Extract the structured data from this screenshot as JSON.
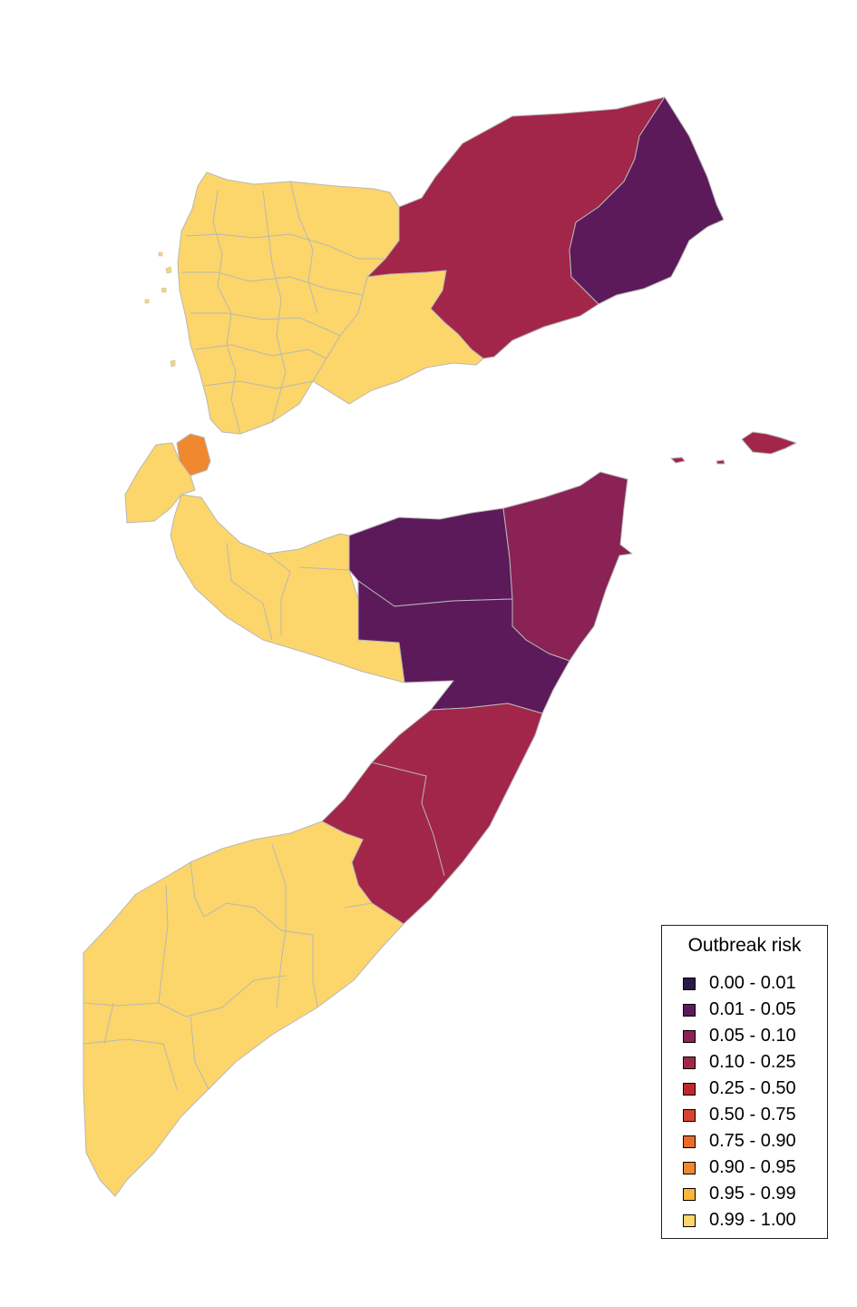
{
  "legend": {
    "title": "Outbreak risk",
    "items": [
      {
        "label": "0.00 - 0.01",
        "color": "#2a1a4a"
      },
      {
        "label": "0.01 - 0.05",
        "color": "#5c1a5a"
      },
      {
        "label": "0.05 - 0.10",
        "color": "#8a2255"
      },
      {
        "label": "0.10 - 0.25",
        "color": "#a2264a"
      },
      {
        "label": "0.25 - 0.50",
        "color": "#c0282f"
      },
      {
        "label": "0.50 - 0.75",
        "color": "#d9442e"
      },
      {
        "label": "0.75 - 0.90",
        "color": "#ea6a2c"
      },
      {
        "label": "0.90 - 0.95",
        "color": "#f08830"
      },
      {
        "label": "0.95 - 0.99",
        "color": "#f9b53c"
      },
      {
        "label": "0.99 - 1.00",
        "color": "#fcd66a"
      }
    ]
  },
  "regions": [
    {
      "name": "yemen-west",
      "risk_class": "0.99 - 1.00",
      "color": "#fcd66a"
    },
    {
      "name": "yemen-shabwah",
      "risk_class": "0.99 - 1.00",
      "color": "#fcd66a"
    },
    {
      "name": "yemen-hadramaut",
      "risk_class": "0.10 - 0.25",
      "color": "#a2264a"
    },
    {
      "name": "yemen-mahra",
      "risk_class": "0.01 - 0.05",
      "color": "#5c1a5a"
    },
    {
      "name": "socotra",
      "risk_class": "0.10 - 0.25",
      "color": "#a2264a"
    },
    {
      "name": "djibouti-north",
      "risk_class": "0.90 - 0.95",
      "color": "#f08830"
    },
    {
      "name": "djibouti-south",
      "risk_class": "0.99 - 1.00",
      "color": "#fcd66a"
    },
    {
      "name": "somaliland",
      "risk_class": "0.99 - 1.00",
      "color": "#fcd66a"
    },
    {
      "name": "somalia-bari",
      "risk_class": "0.05 - 0.10",
      "color": "#8a2255"
    },
    {
      "name": "somalia-sanaag-sool",
      "risk_class": "0.01 - 0.05",
      "color": "#5c1a5a"
    },
    {
      "name": "somalia-nugaal-mudug",
      "risk_class": "0.01 - 0.05",
      "color": "#5c1a5a"
    },
    {
      "name": "somalia-galgaduud-hiiraan",
      "risk_class": "0.10 - 0.25",
      "color": "#a2264a"
    },
    {
      "name": "somalia-south",
      "risk_class": "0.99 - 1.00",
      "color": "#fcd66a"
    }
  ]
}
